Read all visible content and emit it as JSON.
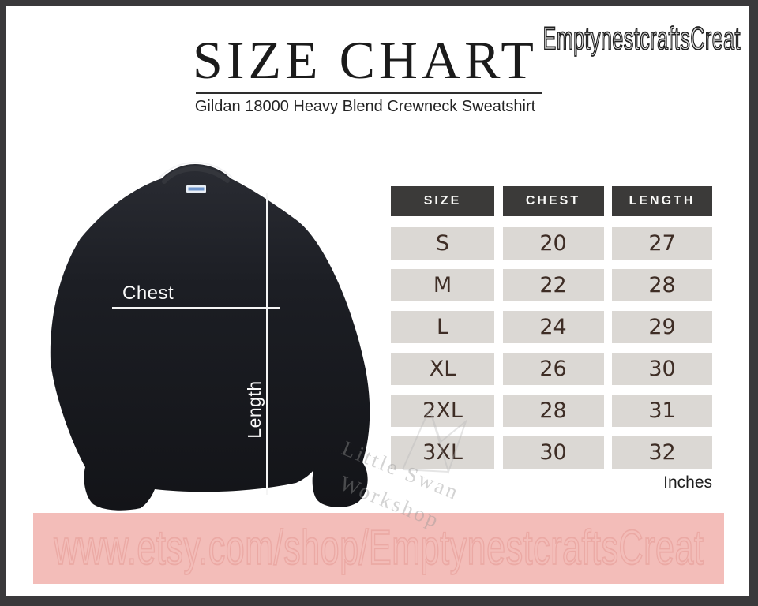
{
  "header": {
    "title": "SIZE CHART",
    "subtitle": "Gildan 18000 Heavy Blend Crewneck Sweatshirt",
    "brand": "EmptynestcraftsCreat"
  },
  "garment": {
    "chest_label": "Chest",
    "length_label": "Length"
  },
  "chart_data": {
    "type": "table",
    "title": "SIZE CHART",
    "subtitle": "Gildan 18000 Heavy Blend Crewneck Sweatshirt",
    "columns": [
      "SIZE",
      "CHEST",
      "LENGTH"
    ],
    "units": "Inches",
    "rows": [
      {
        "size": "S",
        "chest": "20",
        "length": "27"
      },
      {
        "size": "M",
        "chest": "22",
        "length": "28"
      },
      {
        "size": "L",
        "chest": "24",
        "length": "29"
      },
      {
        "size": "XL",
        "chest": "26",
        "length": "30"
      },
      {
        "size": "2XL",
        "chest": "28",
        "length": "31"
      },
      {
        "size": "3XL",
        "chest": "30",
        "length": "32"
      }
    ]
  },
  "footer": {
    "shop_url": "www.etsy.com/shop/EmptynestcraftsCreat"
  },
  "watermark": {
    "line1": "Little Swan",
    "line2": "Workshop"
  },
  "colors": {
    "frame_border": "#3a393b",
    "table_header_bg": "#3b3a39",
    "table_header_text": "#fafaf8",
    "table_cell_bg": "#dbd8d4",
    "table_cell_text": "#3e2d25",
    "banner_bg": "#f3bdb9",
    "banner_text": "#eba9a4",
    "garment_black": "#191b20",
    "measure_line": "#f5f5f5"
  }
}
